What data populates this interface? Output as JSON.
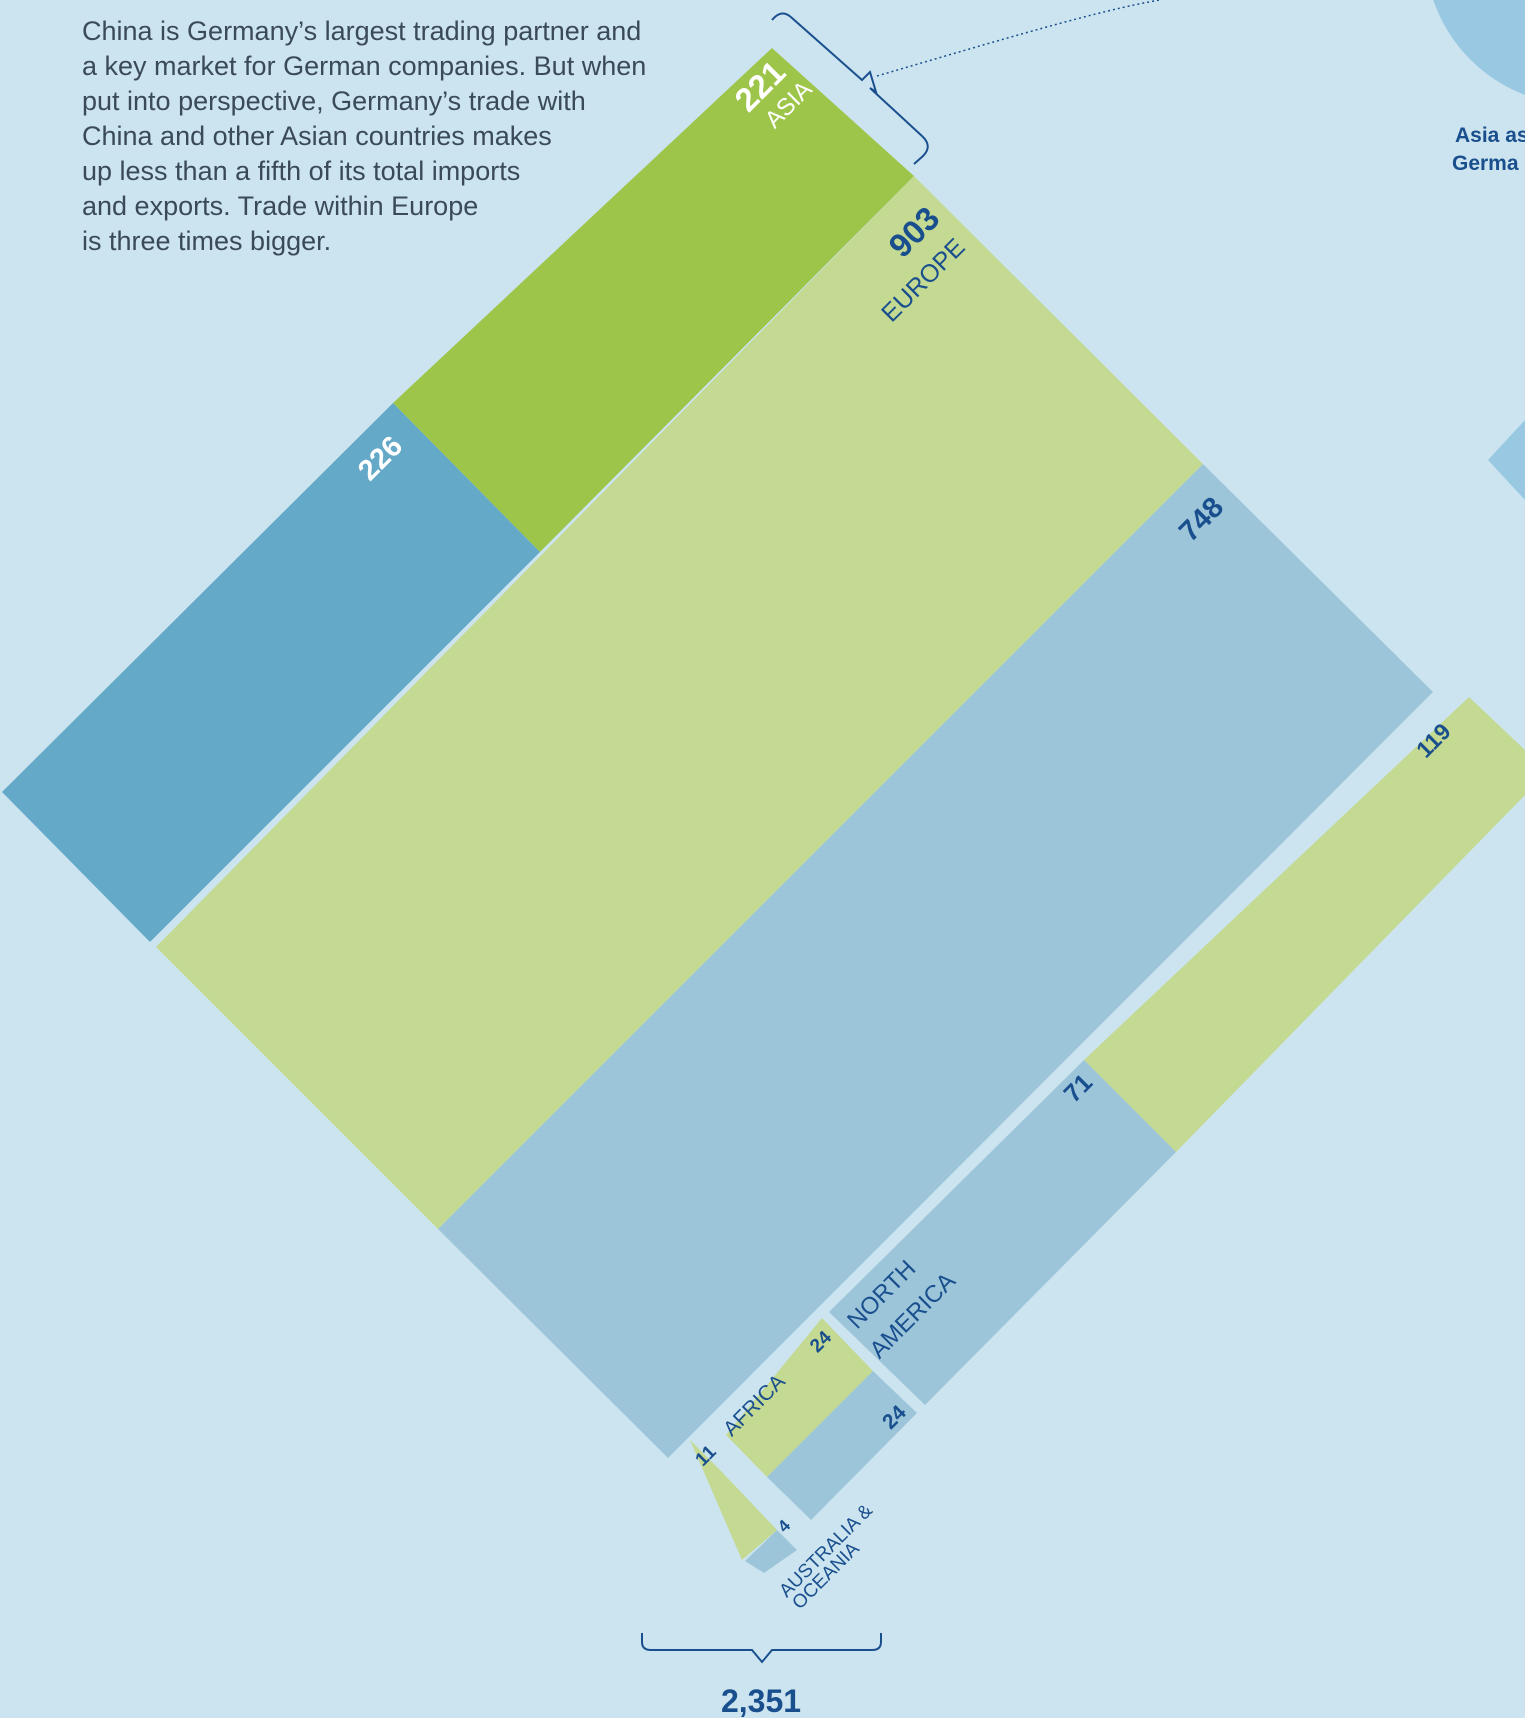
{
  "intro": {
    "lines": [
      "China is Germany’s largest trading partner and",
      "a key market for German companies. But when",
      "put into perspective, Germany’s trade with",
      "China and other Asian countries makes",
      "up less than a fifth of its total imports",
      "and exports. Trade within Europe",
      "is three times bigger."
    ]
  },
  "side_label": {
    "line1": "Asia as",
    "line2": "Germa"
  },
  "total_label": "2,351",
  "colors": {
    "background": "#cce4ef",
    "asia_green": "#9dc54a",
    "light_green": "#c4d992",
    "dark_blue": "#65a9c8",
    "light_blue": "#9cc5da",
    "text_navy": "#1a4f8e",
    "circle": "#98c8e2"
  },
  "chart_data": {
    "type": "treemap",
    "regions": [
      {
        "name": "ASIA",
        "values": [
          221,
          226
        ]
      },
      {
        "name": "EUROPE",
        "values": [
          903,
          748
        ]
      },
      {
        "name": "NORTH AMERICA",
        "values": [
          119,
          71
        ]
      },
      {
        "name": "AFRICA",
        "values": [
          24,
          24
        ]
      },
      {
        "name": "AUSTRALIA & OCEANIA",
        "values": [
          11,
          4
        ]
      }
    ],
    "total": "2,351"
  }
}
